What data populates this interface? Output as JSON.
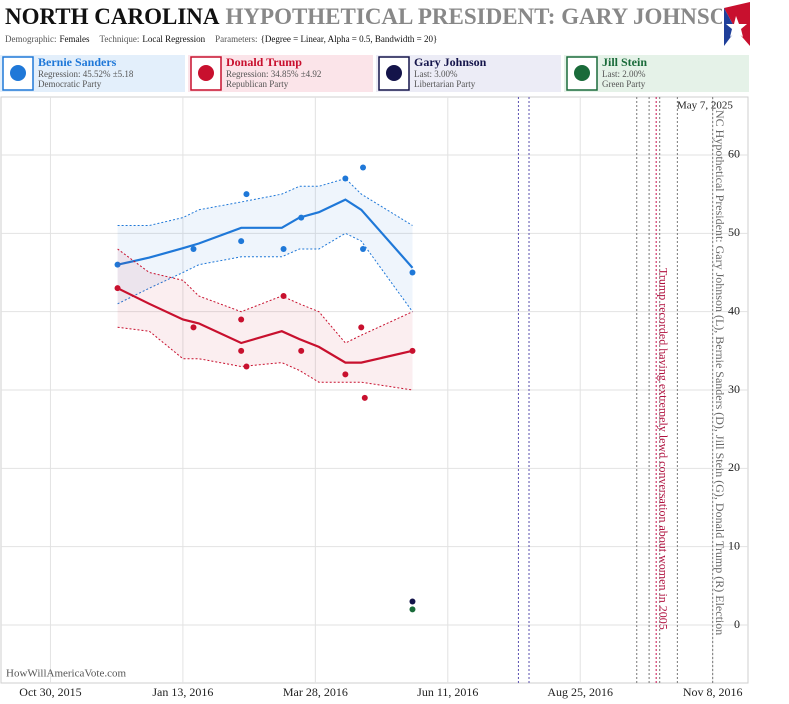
{
  "chart_data": {
    "type": "scatter",
    "title": "NORTH CAROLINA",
    "title2": "HYPOTHETICAL PRESIDENT: GARY JOHNSON",
    "subtitle_items": [
      {
        "label": "Demographic:",
        "value": "Females"
      },
      {
        "label": "Technique:",
        "value": "Local Regression"
      },
      {
        "label": "Parameters:",
        "value": "{Degree = Linear, Alpha = 0.5, Bandwidth = 20}"
      }
    ],
    "date_stamp": "May 7, 2025",
    "watermark": "HowWillAmericaVote.com",
    "xlim": [
      "2015-10-02",
      "2016-11-28"
    ],
    "xticks": [
      {
        "value": "2015-10-30",
        "label": "Oct 30, 2015"
      },
      {
        "value": "2016-01-13",
        "label": "Jan 13, 2016"
      },
      {
        "value": "2016-03-28",
        "label": "Mar 28, 2016"
      },
      {
        "value": "2016-06-11",
        "label": "Jun 11, 2016"
      },
      {
        "value": "2016-08-25",
        "label": "Aug 25, 2016"
      },
      {
        "value": "2016-11-08",
        "label": "Nov 8, 2016"
      }
    ],
    "ylim": [
      -7.4,
      67.4
    ],
    "yticks": [
      0,
      10,
      20,
      30,
      40,
      50,
      60
    ],
    "grid": true,
    "series": [
      {
        "name": "Bernie Sanders",
        "color": "#1f78d8",
        "panel": "#e3effb",
        "stat": "Regression: 45.52% ±5.18",
        "party": "Democratic Party",
        "x": [
          "2015-12-07",
          "2016-01-19",
          "2016-02-15",
          "2016-02-18",
          "2016-03-10",
          "2016-03-20",
          "2016-04-14",
          "2016-04-24",
          "2016-04-24",
          "2016-05-22"
        ],
        "values": [
          46,
          48,
          49,
          55,
          48,
          52,
          57,
          58.4,
          48,
          45
        ],
        "fit": {
          "x": [
            "2015-12-07",
            "2015-12-25",
            "2016-01-13",
            "2016-01-22",
            "2016-02-15",
            "2016-03-09",
            "2016-03-19",
            "2016-03-30",
            "2016-04-14",
            "2016-04-23",
            "2016-05-22"
          ],
          "values": [
            46,
            46.9,
            48.1,
            48.7,
            50.7,
            50.7,
            52,
            52.7,
            54.3,
            53,
            45.6
          ],
          "upper": [
            51,
            51,
            52,
            53,
            54,
            55,
            56,
            56,
            57,
            55,
            51
          ],
          "lower": [
            41,
            43,
            45,
            46,
            47,
            47,
            48,
            48,
            50,
            49,
            40
          ]
        }
      },
      {
        "name": "Donald Trump",
        "color": "#c8102e",
        "panel": "#fbe4e9",
        "stat": "Regression: 34.85% ±4.92",
        "party": "Republican Party",
        "x": [
          "2015-12-07",
          "2016-01-19",
          "2016-02-15",
          "2016-02-15",
          "2016-02-18",
          "2016-03-10",
          "2016-03-20",
          "2016-04-14",
          "2016-04-23",
          "2016-04-25",
          "2016-05-22"
        ],
        "values": [
          43,
          38,
          39,
          35,
          33,
          42,
          35,
          32,
          38,
          29,
          35
        ],
        "fit": {
          "x": [
            "2015-12-07",
            "2015-12-25",
            "2016-01-13",
            "2016-01-22",
            "2016-02-15",
            "2016-03-09",
            "2016-03-19",
            "2016-03-30",
            "2016-04-14",
            "2016-04-23",
            "2016-05-22"
          ],
          "values": [
            43,
            41,
            39,
            38.5,
            36,
            37.5,
            36.5,
            35.5,
            33.5,
            33.5,
            35
          ],
          "upper": [
            48,
            45,
            44,
            42,
            40,
            42,
            41,
            40,
            36,
            37,
            40
          ],
          "lower": [
            38,
            37.5,
            34,
            34,
            33,
            33.5,
            32.5,
            31,
            31,
            31,
            30
          ]
        }
      },
      {
        "name": "Gary Johnson",
        "color": "#14144a",
        "panel": "#ececf6",
        "stat": "Last: 3.00%",
        "party": "Libertarian Party",
        "x": [
          "2016-05-22"
        ],
        "values": [
          3
        ]
      },
      {
        "name": "Jill Stein",
        "color": "#1a6b3a",
        "panel": "#e5f2e8",
        "stat": "Last: 2.00%",
        "party": "Green Party",
        "x": [
          "2016-05-22"
        ],
        "values": [
          2
        ]
      }
    ],
    "events": [
      {
        "x": "2016-07-21",
        "color": "#5a4fb0"
      },
      {
        "x": "2016-07-27",
        "color": "#5a4fb0"
      },
      {
        "x": "2016-09-26",
        "color": "#777777"
      },
      {
        "x": "2016-10-03",
        "color": "#777777"
      },
      {
        "x": "2016-10-07",
        "color": "#c8104e"
      },
      {
        "x": "2016-10-09",
        "color": "#777777"
      },
      {
        "x": "2016-10-19",
        "color": "#777777"
      },
      {
        "x": "2016-11-08",
        "color": "#777777"
      }
    ],
    "annotations": [
      {
        "text": "Trump recorded having extremely lewd conversation about women in 2005",
        "x": "2016-10-07",
        "color": "#b0103e"
      },
      {
        "text": "NC Hypothetical President: Gary Johnson (L), Bernie Sanders (D), Jill Stein (G), Donald Trump (R) Election",
        "x": "2016-11-08",
        "color": "#666666"
      }
    ]
  }
}
